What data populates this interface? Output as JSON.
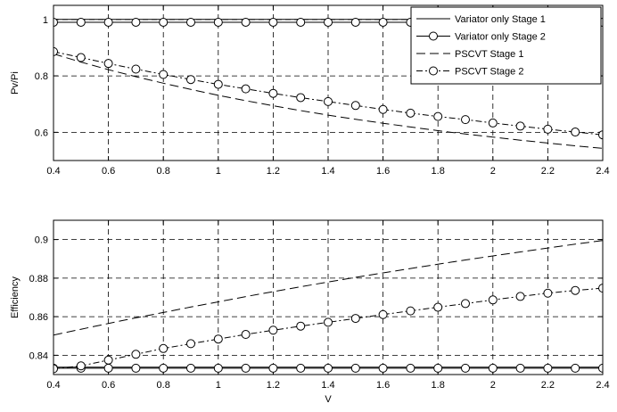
{
  "chart_data": [
    {
      "type": "line",
      "ylabel": "Pv/Pi",
      "xlabel": "",
      "xlim": [
        0.4,
        2.4
      ],
      "ylim": [
        0.5,
        1.05
      ],
      "xticks": [
        0.4,
        0.6,
        0.8,
        1,
        1.2,
        1.4,
        1.6,
        1.8,
        2,
        2.2,
        2.4
      ],
      "xtick_labels": [
        "0.4",
        "0.6",
        "0.8",
        "1",
        "1.2",
        "1.4",
        "1.6",
        "1.8",
        "2",
        "2.2",
        "2.4"
      ],
      "yticks": [
        0.6,
        0.8,
        1.0
      ],
      "ytick_labels": [
        "0.6",
        "0.8",
        "1"
      ],
      "grid": true,
      "legend_position": "top-right",
      "legend": [
        {
          "name": "Variator only Stage 1",
          "line": "solid",
          "marker": "none"
        },
        {
          "name": "Variator only Stage 2",
          "line": "solid",
          "marker": "circle"
        },
        {
          "name": "PSCVT Stage 1",
          "line": "dashed",
          "marker": "none"
        },
        {
          "name": "PSCVT Stage 2",
          "line": "dashdot",
          "marker": "circle"
        }
      ],
      "x": [
        0.4,
        0.5,
        0.6,
        0.7,
        0.8,
        0.9,
        1.0,
        1.1,
        1.2,
        1.3,
        1.4,
        1.5,
        1.6,
        1.7,
        1.8,
        1.9,
        2.0,
        2.1,
        2.2,
        2.3,
        2.4
      ],
      "series": [
        {
          "name": "Variator only Stage 1",
          "line": "solid",
          "marker": "none",
          "values": [
            1,
            1,
            1,
            1,
            1,
            1,
            1,
            1,
            1,
            1,
            1,
            1,
            1,
            1,
            1,
            1,
            1,
            1,
            1,
            1,
            1
          ]
        },
        {
          "name": "Variator only Stage 2",
          "line": "solid",
          "marker": "circle",
          "values": [
            0.99,
            0.99,
            0.99,
            0.99,
            0.99,
            0.99,
            0.99,
            0.99,
            0.99,
            0.99,
            0.99,
            0.99,
            0.99,
            0.99,
            0.99,
            0.99,
            0.99,
            0.99,
            0.99,
            0.99,
            0.99
          ]
        },
        {
          "name": "PSCVT Stage 1",
          "line": "dashed",
          "marker": "none",
          "values": [
            0.878,
            0.849,
            0.822,
            0.797,
            0.774,
            0.752,
            0.731,
            0.712,
            0.694,
            0.677,
            0.661,
            0.646,
            0.632,
            0.619,
            0.606,
            0.594,
            0.583,
            0.572,
            0.562,
            0.552,
            0.543
          ]
        },
        {
          "name": "PSCVT Stage 2",
          "line": "dashdot",
          "marker": "circle",
          "values": [
            0.886,
            0.865,
            0.844,
            0.824,
            0.805,
            0.787,
            0.77,
            0.754,
            0.738,
            0.723,
            0.709,
            0.695,
            0.681,
            0.668,
            0.656,
            0.645,
            0.633,
            0.622,
            0.611,
            0.601,
            0.591
          ]
        }
      ]
    },
    {
      "type": "line",
      "ylabel": "Efficiency",
      "xlabel": "V",
      "xlim": [
        0.4,
        2.4
      ],
      "ylim": [
        0.83,
        0.91
      ],
      "xticks": [
        0.4,
        0.6,
        0.8,
        1,
        1.2,
        1.4,
        1.6,
        1.8,
        2,
        2.2,
        2.4
      ],
      "xtick_labels": [
        "0.4",
        "0.6",
        "0.8",
        "1",
        "1.2",
        "1.4",
        "1.6",
        "1.8",
        "2",
        "2.2",
        "2.4"
      ],
      "yticks": [
        0.84,
        0.86,
        0.88,
        0.9
      ],
      "ytick_labels": [
        "0.84",
        "0.86",
        "0.88",
        "0.9"
      ],
      "grid": true,
      "x": [
        0.4,
        0.5,
        0.6,
        0.7,
        0.8,
        0.9,
        1.0,
        1.1,
        1.2,
        1.3,
        1.4,
        1.5,
        1.6,
        1.7,
        1.8,
        1.9,
        2.0,
        2.1,
        2.2,
        2.3,
        2.4
      ],
      "series": [
        {
          "name": "Variator only Stage 1",
          "line": "solid",
          "marker": "none",
          "values": [
            0.8338,
            0.8338,
            0.8338,
            0.8338,
            0.8338,
            0.8338,
            0.8338,
            0.8338,
            0.8338,
            0.8338,
            0.8338,
            0.8338,
            0.8338,
            0.8338,
            0.8338,
            0.8338,
            0.8338,
            0.8338,
            0.8338,
            0.8338,
            0.8338
          ]
        },
        {
          "name": "Variator only Stage 2",
          "line": "solid",
          "marker": "circle",
          "values": [
            0.8333,
            0.8333,
            0.8333,
            0.8333,
            0.8333,
            0.8333,
            0.8333,
            0.8333,
            0.8333,
            0.8333,
            0.8333,
            0.8333,
            0.8333,
            0.8333,
            0.8333,
            0.8333,
            0.8333,
            0.8333,
            0.8333,
            0.8333,
            0.8333
          ]
        },
        {
          "name": "PSCVT Stage 1",
          "line": "dashed",
          "marker": "none",
          "values": [
            0.8505,
            0.8535,
            0.8565,
            0.8594,
            0.8622,
            0.865,
            0.8677,
            0.8704,
            0.873,
            0.8755,
            0.878,
            0.8804,
            0.8827,
            0.885,
            0.8872,
            0.8894,
            0.8915,
            0.8936,
            0.8956,
            0.8976,
            0.8995
          ]
        },
        {
          "name": "PSCVT Stage 2",
          "line": "dashdot",
          "marker": "circle",
          "values": [
            0.833,
            0.8345,
            0.8375,
            0.8405,
            0.8435,
            0.846,
            0.8484,
            0.8508,
            0.853,
            0.8551,
            0.8571,
            0.8591,
            0.8611,
            0.863,
            0.8649,
            0.8668,
            0.8687,
            0.8705,
            0.8722,
            0.8736,
            0.8748
          ]
        }
      ]
    }
  ]
}
